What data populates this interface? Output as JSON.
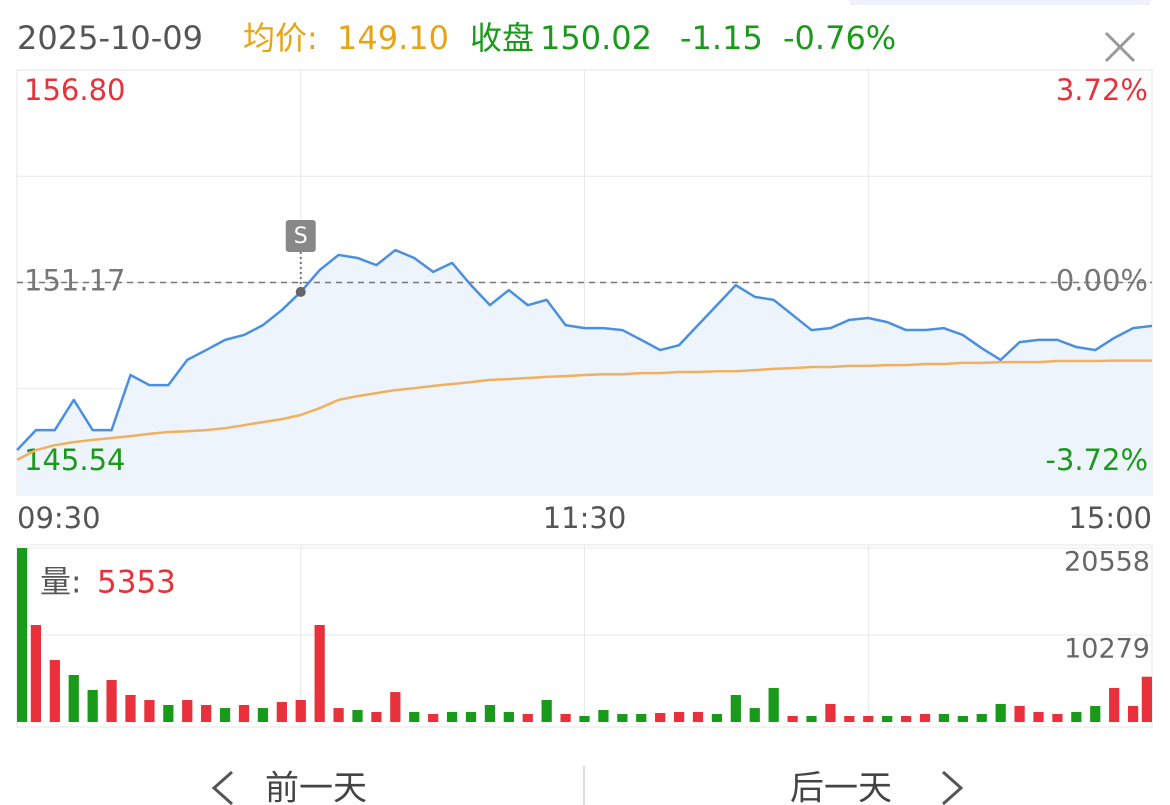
{
  "header": {
    "date": "2025-10-09",
    "avg_label": "均价:",
    "avg_price": "149.10",
    "close_label": "收盘",
    "close_price": "150.02",
    "change": "-1.15",
    "change_pct": "-0.76%"
  },
  "nav": {
    "prev": "前一天",
    "next": "后一天"
  },
  "chart_data": [
    {
      "type": "line",
      "x": [
        0,
        4,
        8,
        12,
        16,
        20,
        24,
        28,
        32,
        36,
        40,
        44,
        48,
        52,
        56,
        60,
        64,
        68,
        72,
        76,
        80,
        84,
        88,
        92,
        96,
        100,
        104,
        108,
        112,
        116,
        120,
        124,
        128,
        132,
        136,
        140,
        144,
        148,
        152,
        156,
        160,
        164,
        168,
        172,
        176,
        180,
        184,
        188,
        192,
        196,
        200,
        204,
        208,
        212,
        216,
        220,
        224,
        228,
        232,
        236,
        240
      ],
      "xlim": [
        0,
        240
      ],
      "xticks": [
        {
          "value": 0,
          "label": "09:30"
        },
        {
          "value": 120,
          "label": "11:30"
        },
        {
          "value": 240,
          "label": "15:00"
        }
      ],
      "ylim": [
        145.54,
        156.8
      ],
      "yticks": [
        {
          "value": 156.8,
          "label": "156.80"
        },
        151.17,
        145.54
      ],
      "y2lim": [
        -3.72,
        3.72
      ],
      "y2ticks": [
        {
          "value": 3.72,
          "label": "3.72%"
        },
        {
          "value": 0,
          "label": "0.00%"
        },
        {
          "value": -3.72,
          "label": "-3.72%"
        }
      ],
      "series": [
        {
          "color": "#4a8fe0",
          "fill": "#eef4fc",
          "values": [
            146.73,
            147.26,
            147.26,
            148.06,
            147.26,
            147.26,
            148.72,
            148.45,
            148.45,
            149.12,
            149.38,
            149.65,
            149.78,
            150.04,
            150.44,
            150.92,
            151.5,
            151.9,
            151.82,
            151.63,
            152.03,
            151.82,
            151.45,
            151.69,
            151.1,
            150.57,
            150.97,
            150.57,
            150.71,
            150.04,
            149.96,
            149.96,
            149.91,
            149.65,
            149.38,
            149.51,
            150.04,
            150.57,
            151.1,
            150.79,
            150.71,
            150.31,
            149.91,
            149.96,
            150.18,
            150.23,
            150.12,
            149.91,
            149.91,
            149.96,
            149.78,
            149.43,
            149.12,
            149.59,
            149.65,
            149.65,
            149.46,
            149.38,
            149.7,
            149.96,
            150.02
          ]
        },
        {
          "color": "#f0b060",
          "values": [
            146.47,
            146.73,
            146.86,
            146.94,
            147.0,
            147.05,
            147.1,
            147.16,
            147.21,
            147.23,
            147.26,
            147.31,
            147.39,
            147.47,
            147.55,
            147.66,
            147.84,
            148.06,
            148.16,
            148.24,
            148.32,
            148.37,
            148.43,
            148.48,
            148.53,
            148.59,
            148.61,
            148.64,
            148.67,
            148.69,
            148.72,
            148.74,
            148.74,
            148.77,
            148.77,
            148.8,
            148.8,
            148.82,
            148.82,
            148.85,
            148.88,
            148.9,
            148.93,
            148.93,
            148.96,
            148.96,
            148.98,
            148.98,
            149.01,
            149.01,
            149.04,
            149.04,
            149.06,
            149.06,
            149.06,
            149.09,
            149.09,
            149.09,
            149.1,
            149.1,
            149.1
          ]
        }
      ],
      "marker": {
        "label": "S",
        "x": 60
      }
    },
    {
      "type": "bar",
      "label": "量:",
      "current_volume": 5353,
      "x": [
        0,
        4,
        8,
        12,
        16,
        20,
        24,
        28,
        32,
        36,
        40,
        44,
        48,
        52,
        56,
        60,
        64,
        68,
        72,
        76,
        80,
        84,
        88,
        92,
        96,
        100,
        104,
        108,
        112,
        116,
        120,
        124,
        128,
        132,
        136,
        140,
        144,
        148,
        152,
        156,
        160,
        164,
        168,
        172,
        176,
        180,
        184,
        188,
        192,
        196,
        200,
        204,
        208,
        212,
        216,
        220,
        224,
        228,
        232,
        236,
        240
      ],
      "xlim": [
        0,
        240
      ],
      "ylim": [
        0,
        20558
      ],
      "yticks": [
        10279,
        20558
      ],
      "values": [
        20558,
        11460,
        7320,
        5550,
        3780,
        4960,
        3190,
        2600,
        2010,
        2600,
        2010,
        1650,
        2010,
        1650,
        2360,
        2600,
        11460,
        1650,
        1420,
        1180,
        3540,
        1180,
        945,
        1180,
        1180,
        2010,
        1180,
        945,
        2600,
        945,
        710,
        1420,
        945,
        945,
        1060,
        1180,
        1180,
        945,
        3190,
        1650,
        4020,
        710,
        710,
        2130,
        710,
        710,
        710,
        710,
        945,
        945,
        710,
        945,
        2130,
        1890,
        1180,
        945,
        1180,
        1890,
        4020,
        1890,
        5353
      ],
      "colors": [
        "#1a9a1a",
        "#e8313a",
        "#e8313a",
        "#1a9a1a",
        "#1a9a1a",
        "#e8313a",
        "#e8313a",
        "#e8313a",
        "#1a9a1a",
        "#e8313a",
        "#e8313a",
        "#1a9a1a",
        "#e8313a",
        "#1a9a1a",
        "#e8313a",
        "#e8313a",
        "#e8313a",
        "#e8313a",
        "#1a9a1a",
        "#e8313a",
        "#e8313a",
        "#1a9a1a",
        "#e8313a",
        "#1a9a1a",
        "#1a9a1a",
        "#1a9a1a",
        "#1a9a1a",
        "#e8313a",
        "#1a9a1a",
        "#e8313a",
        "#1a9a1a",
        "#1a9a1a",
        "#1a9a1a",
        "#1a9a1a",
        "#e8313a",
        "#e8313a",
        "#e8313a",
        "#1a9a1a",
        "#1a9a1a",
        "#1a9a1a",
        "#1a9a1a",
        "#e8313a",
        "#1a9a1a",
        "#e8313a",
        "#e8313a",
        "#e8313a",
        "#1a9a1a",
        "#e8313a",
        "#e8313a",
        "#1a9a1a",
        "#1a9a1a",
        "#1a9a1a",
        "#1a9a1a",
        "#e8313a",
        "#e8313a",
        "#e8313a",
        "#1a9a1a",
        "#1a9a1a",
        "#e8313a",
        "#e8313a",
        "#e8313a"
      ]
    }
  ]
}
